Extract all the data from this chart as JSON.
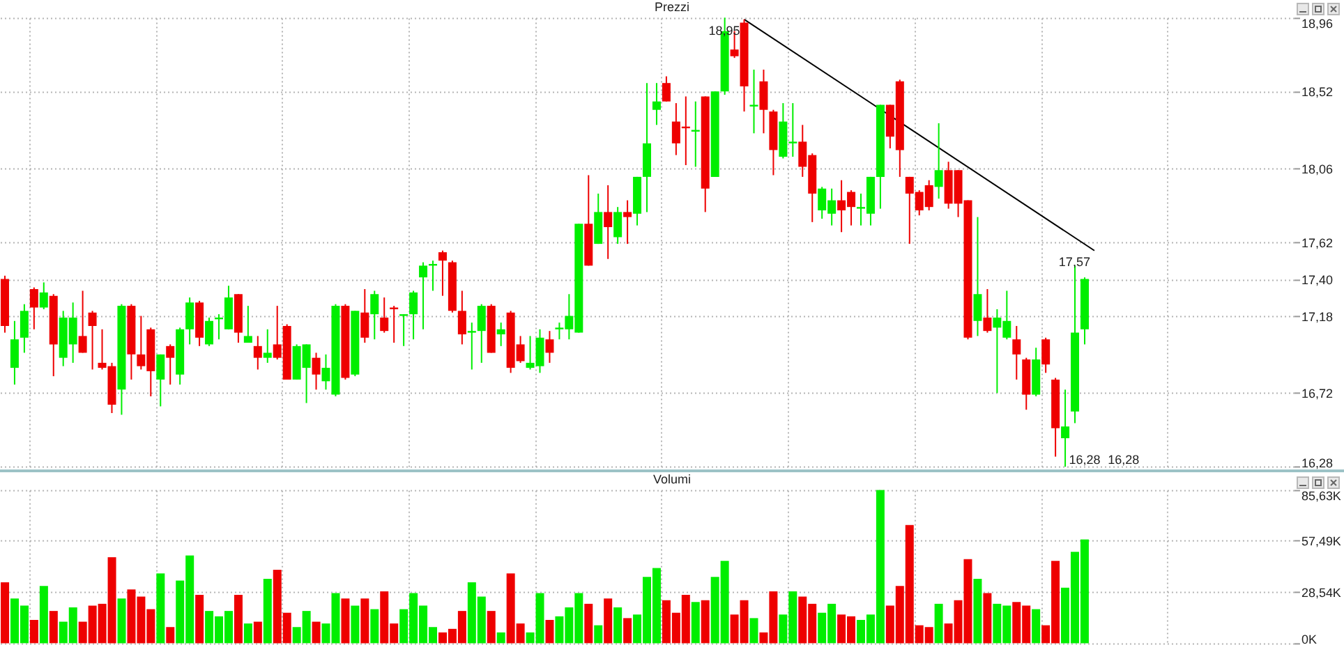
{
  "chart_data": [
    {
      "type": "candlestick",
      "title": "Prezzi",
      "categories": [
        null,
        null,
        null,
        null,
        null,
        null,
        null,
        null,
        null,
        null,
        null,
        null,
        null,
        null,
        null,
        null,
        null,
        null,
        null,
        null,
        null,
        null,
        null,
        null,
        null,
        null,
        null,
        null,
        null,
        null,
        null,
        null,
        null,
        null,
        null,
        null,
        null,
        null,
        null,
        null,
        null,
        null,
        null,
        null,
        null,
        null,
        null,
        null,
        null,
        null,
        null,
        null,
        null,
        null,
        null,
        null,
        null,
        null,
        null,
        null,
        null,
        null,
        null,
        null,
        null,
        null,
        null,
        null,
        null,
        null,
        null,
        null,
        null,
        null,
        null,
        null,
        null,
        null,
        null,
        null,
        null,
        null,
        null,
        null,
        null,
        null,
        null,
        null,
        null,
        null,
        null,
        null,
        null,
        null,
        null,
        null,
        null,
        null,
        null,
        null,
        null,
        null,
        null,
        null,
        null,
        null,
        null,
        null,
        null,
        null,
        null,
        null,
        null,
        null,
        null,
        null,
        null,
        null,
        null,
        null,
        null,
        null,
        null,
        null,
        null,
        null,
        null,
        null,
        null,
        null,
        null,
        null,
        null
      ],
      "ohlc": [
        [
          17.4,
          17.42,
          17.08,
          17.12
        ],
        [
          16.87,
          17.15,
          16.77,
          17.04
        ],
        [
          17.05,
          17.25,
          16.96,
          17.21
        ],
        [
          17.34,
          17.35,
          17.1,
          17.23
        ],
        [
          17.23,
          17.38,
          17.22,
          17.32
        ],
        [
          17.3,
          17.31,
          16.82,
          17.01
        ],
        [
          16.93,
          17.21,
          16.88,
          17.17
        ],
        [
          17.01,
          17.26,
          16.9,
          17.17
        ],
        [
          17.06,
          17.33,
          16.96,
          16.96
        ],
        [
          17.2,
          17.21,
          16.86,
          17.12
        ],
        [
          16.9,
          17.1,
          16.86,
          16.87
        ],
        [
          16.88,
          16.9,
          16.6,
          16.65
        ],
        [
          16.74,
          17.25,
          16.59,
          17.24
        ],
        [
          17.24,
          17.25,
          16.8,
          16.95
        ],
        [
          16.95,
          17.18,
          16.86,
          16.88
        ],
        [
          17.1,
          17.11,
          16.7,
          16.85
        ],
        [
          16.8,
          16.95,
          16.64,
          16.95
        ],
        [
          17.0,
          17.01,
          16.77,
          16.93
        ],
        [
          16.83,
          17.11,
          16.77,
          17.1
        ],
        [
          17.1,
          17.29,
          17.01,
          17.26
        ],
        [
          17.26,
          17.27,
          17.0,
          17.05
        ],
        [
          17.01,
          17.17,
          17.0,
          17.15
        ],
        [
          17.16,
          17.19,
          17.04,
          17.17
        ],
        [
          17.1,
          17.36,
          17.1,
          17.29
        ],
        [
          17.31,
          17.31,
          17.02,
          17.08
        ],
        [
          17.02,
          17.24,
          17.02,
          17.06
        ],
        [
          17.0,
          17.06,
          16.86,
          16.93
        ],
        [
          16.93,
          17.1,
          16.9,
          16.96
        ],
        [
          17.01,
          17.24,
          16.92,
          16.93
        ],
        [
          17.12,
          17.13,
          16.8,
          16.8
        ],
        [
          16.8,
          17.01,
          16.8,
          17.0
        ],
        [
          16.87,
          17.01,
          16.66,
          17.01
        ],
        [
          16.93,
          16.96,
          16.74,
          16.83
        ],
        [
          16.79,
          16.95,
          16.74,
          16.87
        ],
        [
          16.71,
          17.25,
          16.7,
          17.24
        ],
        [
          17.24,
          17.25,
          16.8,
          16.81
        ],
        [
          16.83,
          17.21,
          16.82,
          17.21
        ],
        [
          17.2,
          17.34,
          17.02,
          17.05
        ],
        [
          17.19,
          17.33,
          17.04,
          17.31
        ],
        [
          17.17,
          17.29,
          17.08,
          17.09
        ],
        [
          17.23,
          17.24,
          17.02,
          17.22
        ],
        [
          17.18,
          17.19,
          17.0,
          17.19
        ],
        [
          17.19,
          17.33,
          17.04,
          17.32
        ],
        [
          17.41,
          17.5,
          17.1,
          17.48
        ],
        [
          17.48,
          17.51,
          17.33,
          17.49
        ],
        [
          17.56,
          17.57,
          17.3,
          17.51
        ],
        [
          17.5,
          17.51,
          17.2,
          17.21
        ],
        [
          17.21,
          17.33,
          17.01,
          17.07
        ],
        [
          17.08,
          17.14,
          16.86,
          17.09
        ],
        [
          17.09,
          17.25,
          16.9,
          17.24
        ],
        [
          17.24,
          17.25,
          16.96,
          16.96
        ],
        [
          17.07,
          17.14,
          17.0,
          17.1
        ],
        [
          17.2,
          17.21,
          16.84,
          16.87
        ],
        [
          17.01,
          17.06,
          16.9,
          16.91
        ],
        [
          16.87,
          17.06,
          16.86,
          16.9
        ],
        [
          16.88,
          17.1,
          16.84,
          17.05
        ],
        [
          17.04,
          17.09,
          16.9,
          16.96
        ],
        [
          17.1,
          17.14,
          17.04,
          17.11
        ],
        [
          17.1,
          17.31,
          17.04,
          17.18
        ],
        [
          17.08,
          17.73,
          17.08,
          17.73
        ],
        [
          17.73,
          18.02,
          17.48,
          17.48
        ],
        [
          17.61,
          17.91,
          17.61,
          17.8
        ],
        [
          17.8,
          17.96,
          17.52,
          17.71
        ],
        [
          17.65,
          17.83,
          17.61,
          17.8
        ],
        [
          17.8,
          17.87,
          17.61,
          17.77
        ],
        [
          17.79,
          18.01,
          17.72,
          18.01
        ],
        [
          18.01,
          18.57,
          17.8,
          18.21
        ],
        [
          18.41,
          18.57,
          18.32,
          18.46
        ],
        [
          18.57,
          18.61,
          18.46,
          18.46
        ],
        [
          18.34,
          18.45,
          18.14,
          18.21
        ],
        [
          18.31,
          18.49,
          18.08,
          18.3
        ],
        [
          18.28,
          18.46,
          18.07,
          18.29
        ],
        [
          18.49,
          18.49,
          17.8,
          17.94
        ],
        [
          18.01,
          18.52,
          18.01,
          18.52
        ],
        [
          18.52,
          18.96,
          18.5,
          18.88
        ],
        [
          18.77,
          18.88,
          18.72,
          18.73
        ],
        [
          18.93,
          18.95,
          18.4,
          18.55
        ],
        [
          18.43,
          18.65,
          18.27,
          18.44
        ],
        [
          18.58,
          18.65,
          18.27,
          18.41
        ],
        [
          18.4,
          18.41,
          18.02,
          18.17
        ],
        [
          18.13,
          18.45,
          18.12,
          18.34
        ],
        [
          18.21,
          18.45,
          18.13,
          18.22
        ],
        [
          18.22,
          18.32,
          18.01,
          18.07
        ],
        [
          18.14,
          18.15,
          17.74,
          17.91
        ],
        [
          17.81,
          17.95,
          17.76,
          17.94
        ],
        [
          17.79,
          17.94,
          17.72,
          17.87
        ],
        [
          17.87,
          17.99,
          17.68,
          17.81
        ],
        [
          17.92,
          17.93,
          17.72,
          17.83
        ],
        [
          17.82,
          17.91,
          17.72,
          17.83
        ],
        [
          17.79,
          18.01,
          17.72,
          18.01
        ],
        [
          18.01,
          18.44,
          17.82,
          18.44
        ],
        [
          18.44,
          18.44,
          18.18,
          18.25
        ],
        [
          18.58,
          18.59,
          18.01,
          18.17
        ],
        [
          18.01,
          18.01,
          17.61,
          17.91
        ],
        [
          17.92,
          17.93,
          17.78,
          17.81
        ],
        [
          17.96,
          17.99,
          17.81,
          17.83
        ],
        [
          17.95,
          18.33,
          17.88,
          18.05
        ],
        [
          18.05,
          18.1,
          17.82,
          17.85
        ],
        [
          18.05,
          18.05,
          17.77,
          17.85
        ],
        [
          17.87,
          17.87,
          17.04,
          17.05
        ],
        [
          17.15,
          17.77,
          17.06,
          17.31
        ],
        [
          17.17,
          17.34,
          17.08,
          17.09
        ],
        [
          17.11,
          17.22,
          16.72,
          17.17
        ],
        [
          17.05,
          17.33,
          17.04,
          17.15
        ],
        [
          17.04,
          17.12,
          16.8,
          16.95
        ],
        [
          16.92,
          16.93,
          16.62,
          16.71
        ],
        [
          16.71,
          16.99,
          16.7,
          16.92
        ],
        [
          17.04,
          17.05,
          16.84,
          16.89
        ],
        [
          16.8,
          16.81,
          16.34,
          16.51
        ],
        [
          16.45,
          16.74,
          16.28,
          16.52
        ],
        [
          16.61,
          17.48,
          16.54,
          17.08
        ],
        [
          17.1,
          17.41,
          17.01,
          17.4
        ],
        null,
        null,
        null,
        null,
        null,
        null,
        null,
        null,
        null,
        null,
        null,
        null,
        null,
        null,
        null,
        null,
        null,
        null,
        null,
        null,
        null
      ],
      "colors": [
        "#ee0000",
        "#00ee00",
        "#00ee00",
        "#ee0000",
        "#00ee00",
        "#ee0000",
        "#00ee00",
        "#00ee00",
        "#ee0000",
        "#ee0000",
        "#ee0000",
        "#ee0000",
        "#00ee00",
        "#ee0000",
        "#ee0000",
        "#ee0000",
        "#00ee00",
        "#ee0000",
        "#00ee00",
        "#00ee00",
        "#ee0000",
        "#00ee00",
        "#00ee00",
        "#00ee00",
        "#ee0000",
        "#00ee00",
        "#ee0000",
        "#00ee00",
        "#ee0000",
        "#ee0000",
        "#00ee00",
        "#00ee00",
        "#ee0000",
        "#00ee00",
        "#00ee00",
        "#ee0000",
        "#00ee00",
        "#ee0000",
        "#00ee00",
        "#ee0000",
        "#ee0000",
        "#00ee00",
        "#00ee00",
        "#00ee00",
        "#00ee00",
        "#ee0000",
        "#ee0000",
        "#ee0000",
        "#00ee00",
        "#00ee00",
        "#ee0000",
        "#00ee00",
        "#ee0000",
        "#ee0000",
        "#00ee00",
        "#00ee00",
        "#ee0000",
        "#00ee00",
        "#00ee00",
        "#00ee00",
        "#ee0000",
        "#00ee00",
        "#ee0000",
        "#00ee00",
        "#ee0000",
        "#00ee00",
        "#00ee00",
        "#00ee00",
        "#ee0000",
        "#ee0000",
        "#ee0000",
        "#00ee00",
        "#ee0000",
        "#00ee00",
        "#00ee00",
        "#ee0000",
        "#ee0000",
        "#00ee00",
        "#ee0000",
        "#ee0000",
        "#00ee00",
        "#00ee00",
        "#ee0000",
        "#ee0000",
        "#00ee00",
        "#00ee00",
        "#ee0000",
        "#ee0000",
        "#00ee00",
        "#00ee00",
        "#00ee00",
        "#ee0000",
        "#ee0000",
        "#ee0000",
        "#ee0000",
        "#ee0000",
        "#00ee00",
        "#ee0000",
        "#ee0000",
        "#ee0000",
        "#00ee00",
        "#ee0000",
        "#00ee00",
        "#00ee00",
        "#ee0000",
        "#ee0000",
        "#00ee00",
        "#ee0000",
        "#ee0000",
        "#00ee00",
        "#00ee00",
        "#00ee00",
        null,
        null,
        null,
        null,
        null,
        null,
        null,
        null,
        null,
        null,
        null,
        null,
        null,
        null,
        null,
        null,
        null,
        null,
        null,
        null,
        null
      ],
      "series": [
        {
          "type": "line",
          "color": "#000000",
          "values": [
            null,
            null,
            null,
            null,
            null,
            null,
            null,
            null,
            null,
            null,
            null,
            null,
            null,
            null,
            null,
            null,
            null,
            null,
            null,
            null,
            null,
            null,
            null,
            null,
            null,
            null,
            null,
            null,
            null,
            null,
            null,
            null,
            null,
            null,
            null,
            null,
            null,
            null,
            null,
            null,
            null,
            null,
            null,
            null,
            null,
            null,
            null,
            null,
            null,
            null,
            null,
            null,
            null,
            null,
            null,
            null,
            null,
            null,
            null,
            null,
            null,
            null,
            null,
            null,
            null,
            null,
            null,
            null,
            null,
            null,
            null,
            null,
            null,
            null,
            null,
            null,
            18.95,
            null,
            null,
            null,
            null,
            null,
            null,
            null,
            null,
            null,
            null,
            null,
            null,
            null,
            null,
            null,
            null,
            null,
            null,
            null,
            null,
            null,
            null,
            null,
            null,
            null,
            null,
            null,
            null,
            null,
            null,
            null,
            null,
            null,
            null,
            null,
            17.57,
            null,
            null,
            null,
            null,
            null,
            null,
            null,
            null,
            null,
            null,
            null,
            null,
            null,
            null,
            null,
            null,
            null,
            null,
            null,
            null
          ],
          "value_labels": [
            null,
            null,
            null,
            null,
            null,
            null,
            null,
            null,
            null,
            null,
            null,
            null,
            null,
            null,
            null,
            null,
            null,
            null,
            null,
            null,
            null,
            null,
            null,
            null,
            null,
            null,
            null,
            null,
            null,
            null,
            null,
            null,
            null,
            null,
            null,
            null,
            null,
            null,
            null,
            null,
            null,
            null,
            null,
            null,
            null,
            null,
            null,
            null,
            null,
            null,
            null,
            null,
            null,
            null,
            null,
            null,
            null,
            null,
            null,
            null,
            null,
            null,
            null,
            null,
            null,
            null,
            null,
            null,
            null,
            null,
            null,
            null,
            null,
            null,
            null,
            null,
            "18,95",
            null,
            null,
            null,
            null,
            null,
            null,
            null,
            null,
            null,
            null,
            null,
            null,
            null,
            null,
            null,
            null,
            null,
            null,
            null,
            null,
            null,
            null,
            null,
            null,
            null,
            null,
            null,
            null,
            null,
            null,
            null,
            null,
            null,
            null,
            null,
            "17,57",
            null,
            null,
            null,
            null,
            null,
            null,
            null,
            null,
            null,
            null,
            null,
            null,
            null,
            null,
            null,
            null,
            null,
            null,
            null,
            null
          ]
        }
      ],
      "annotations": [
        "16,28",
        "16,28"
      ],
      "ylim": [
        16.28,
        18.96
      ],
      "yticks": [
        {
          "value": 16.28,
          "label": "16,28"
        },
        {
          "value": 16.72,
          "label": "16,72"
        },
        {
          "value": 17.18,
          "label": "17,18"
        },
        {
          "value": 17.4,
          "label": "17,40"
        },
        {
          "value": 17.62,
          "label": "17,62"
        },
        {
          "value": 18.06,
          "label": "18,06"
        },
        {
          "value": 18.52,
          "label": "18,52"
        },
        {
          "value": 18.96,
          "label": "18,96"
        }
      ],
      "grid": true,
      "tick_labels": "y"
    },
    {
      "type": "bar",
      "title": "Volumi",
      "categories": [
        null,
        null,
        null,
        null,
        null,
        null,
        null,
        null,
        null,
        null,
        null,
        null,
        null,
        null,
        null,
        null,
        null,
        null,
        null,
        null,
        null,
        null,
        null,
        null,
        null,
        null,
        null,
        null,
        null,
        null,
        null,
        null,
        null,
        null,
        null,
        null,
        null,
        null,
        null,
        null,
        null,
        null,
        null,
        null,
        null,
        null,
        null,
        null,
        null,
        null,
        null,
        null,
        null,
        null,
        null,
        null,
        null,
        null,
        null,
        null,
        null,
        null,
        null,
        null,
        null,
        null,
        null,
        null,
        null,
        null,
        null,
        null,
        null,
        null,
        null,
        null,
        null,
        null,
        null,
        null,
        null,
        null,
        null,
        null,
        null,
        null,
        null,
        null,
        null,
        null,
        null,
        null,
        null,
        null,
        null,
        null,
        null,
        null,
        null,
        null,
        null,
        null,
        null,
        null,
        null,
        null,
        null,
        null,
        null,
        null,
        null,
        null,
        null,
        null,
        null,
        null,
        null,
        null,
        null,
        null,
        null,
        null,
        null,
        null,
        null,
        null,
        null,
        null,
        null,
        null,
        null,
        null,
        null
      ],
      "values": [
        34,
        25,
        21,
        13,
        32,
        18,
        12,
        20,
        12,
        21,
        22,
        48,
        25,
        30,
        26,
        19,
        39,
        9,
        35,
        49,
        27,
        18,
        15,
        18,
        27,
        11,
        12,
        36,
        41,
        17,
        9,
        18,
        12,
        11,
        28,
        25,
        21,
        25,
        19,
        29,
        11,
        19,
        28,
        21,
        9,
        6,
        8,
        18,
        34,
        26,
        18,
        6,
        39,
        11,
        6,
        28,
        13,
        15,
        20,
        28,
        22,
        10,
        25,
        20,
        14,
        16,
        37,
        42,
        24,
        17,
        27,
        23,
        24,
        37,
        46,
        16,
        24,
        14,
        6,
        29,
        16,
        29,
        26,
        22,
        17,
        22,
        16,
        15,
        13,
        16,
        85.63,
        21,
        32,
        66,
        10,
        9,
        22,
        11,
        24,
        47,
        36,
        28,
        22,
        21,
        23,
        21,
        19,
        10,
        46,
        31,
        51,
        58,
        null,
        null,
        null,
        null,
        null,
        null,
        null,
        null,
        null,
        null,
        null,
        null,
        null,
        null,
        null,
        null,
        null,
        null,
        null,
        null,
        null
      ],
      "colors": [
        "#ee0000",
        "#00ee00",
        "#00ee00",
        "#ee0000",
        "#00ee00",
        "#ee0000",
        "#00ee00",
        "#00ee00",
        "#ee0000",
        "#ee0000",
        "#ee0000",
        "#ee0000",
        "#00ee00",
        "#ee0000",
        "#ee0000",
        "#ee0000",
        "#00ee00",
        "#ee0000",
        "#00ee00",
        "#00ee00",
        "#ee0000",
        "#00ee00",
        "#00ee00",
        "#00ee00",
        "#ee0000",
        "#00ee00",
        "#ee0000",
        "#00ee00",
        "#ee0000",
        "#ee0000",
        "#00ee00",
        "#00ee00",
        "#ee0000",
        "#00ee00",
        "#00ee00",
        "#ee0000",
        "#00ee00",
        "#ee0000",
        "#00ee00",
        "#ee0000",
        "#ee0000",
        "#00ee00",
        "#00ee00",
        "#00ee00",
        "#00ee00",
        "#ee0000",
        "#ee0000",
        "#ee0000",
        "#00ee00",
        "#00ee00",
        "#ee0000",
        "#00ee00",
        "#ee0000",
        "#ee0000",
        "#00ee00",
        "#00ee00",
        "#ee0000",
        "#00ee00",
        "#00ee00",
        "#00ee00",
        "#ee0000",
        "#00ee00",
        "#ee0000",
        "#00ee00",
        "#ee0000",
        "#00ee00",
        "#00ee00",
        "#00ee00",
        "#ee0000",
        "#ee0000",
        "#ee0000",
        "#00ee00",
        "#ee0000",
        "#00ee00",
        "#00ee00",
        "#ee0000",
        "#ee0000",
        "#00ee00",
        "#ee0000",
        "#ee0000",
        "#00ee00",
        "#00ee00",
        "#ee0000",
        "#ee0000",
        "#00ee00",
        "#00ee00",
        "#ee0000",
        "#ee0000",
        "#00ee00",
        "#00ee00",
        "#00ee00",
        "#ee0000",
        "#ee0000",
        "#ee0000",
        "#ee0000",
        "#ee0000",
        "#00ee00",
        "#ee0000",
        "#ee0000",
        "#ee0000",
        "#00ee00",
        "#ee0000",
        "#00ee00",
        "#00ee00",
        "#ee0000",
        "#ee0000",
        "#00ee00",
        "#ee0000",
        "#ee0000",
        "#00ee00",
        "#00ee00",
        "#00ee00",
        null,
        null,
        null,
        null,
        null,
        null,
        null,
        null,
        null,
        null,
        null,
        null,
        null,
        null,
        null,
        null,
        null,
        null,
        null,
        null,
        null
      ],
      "ylim": [
        0,
        85.63
      ],
      "yticks": [
        {
          "value": 0,
          "label": "0K"
        },
        {
          "value": 28.54,
          "label": "28,54K"
        },
        {
          "value": 57.49,
          "label": "57,49K"
        },
        {
          "value": 85.63,
          "label": "85,63K"
        }
      ],
      "grid": true,
      "tick_labels": "y"
    }
  ]
}
